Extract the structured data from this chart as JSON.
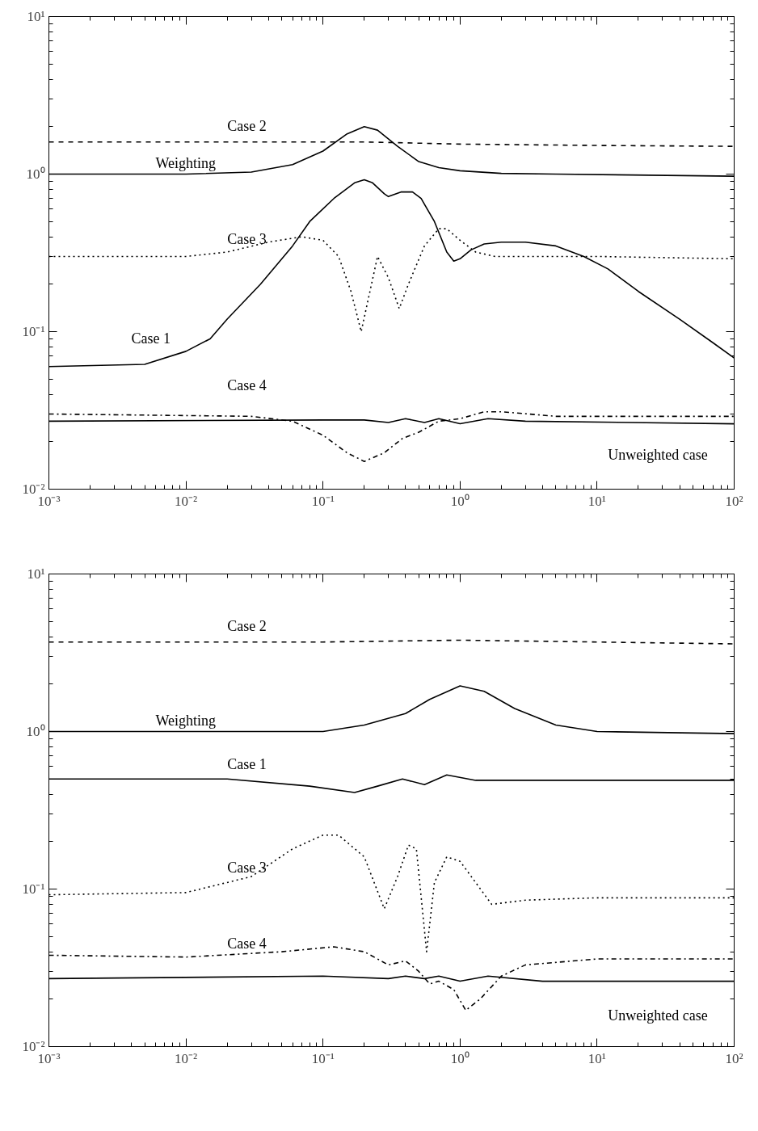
{
  "chart_data": [
    {
      "type": "line",
      "log": "xy",
      "grid": false,
      "legend": false,
      "marker": "none",
      "xlim": [
        0.001,
        100
      ],
      "ylim": [
        0.01,
        10
      ],
      "xticks": [
        {
          "value": 0.001,
          "label": "10⁻³"
        },
        {
          "value": 0.01,
          "label": "10⁻²"
        },
        {
          "value": 0.1,
          "label": "10⁻¹"
        },
        {
          "value": 1,
          "label": "10⁰"
        },
        {
          "value": 10,
          "label": "10¹"
        },
        {
          "value": 100,
          "label": "10²"
        }
      ],
      "yticks": [
        {
          "value": 0.01,
          "label": "10⁻²"
        },
        {
          "value": 0.1,
          "label": "10⁻¹"
        },
        {
          "value": 1,
          "label": "10⁰"
        },
        {
          "value": 10,
          "label": "10¹"
        }
      ],
      "series": [
        {
          "name": "Case 2",
          "color": "#000000",
          "line_style": "dashed",
          "x": [
            0.001,
            0.01,
            0.2,
            1,
            10,
            100
          ],
          "values": [
            1.6,
            1.6,
            1.6,
            1.55,
            1.52,
            1.5
          ]
        },
        {
          "name": "Weighting",
          "color": "#000000",
          "line_style": "solid",
          "x": [
            0.001,
            0.01,
            0.03,
            0.06,
            0.1,
            0.15,
            0.2,
            0.25,
            0.35,
            0.5,
            0.7,
            1,
            2,
            5,
            100
          ],
          "values": [
            1.0,
            1.0,
            1.03,
            1.15,
            1.4,
            1.8,
            2.0,
            1.9,
            1.5,
            1.2,
            1.1,
            1.05,
            1.01,
            1.0,
            0.97
          ]
        },
        {
          "name": "Case 1",
          "color": "#000000",
          "line_style": "solid",
          "x": [
            0.001,
            0.005,
            0.01,
            0.015,
            0.02,
            0.035,
            0.06,
            0.08,
            0.12,
            0.17,
            0.2,
            0.23,
            0.28,
            0.3,
            0.37,
            0.45,
            0.52,
            0.65,
            0.8,
            0.9,
            1.0,
            1.2,
            1.5,
            2,
            3,
            5,
            8,
            12,
            20,
            40,
            70,
            100
          ],
          "values": [
            0.06,
            0.062,
            0.075,
            0.09,
            0.12,
            0.2,
            0.35,
            0.5,
            0.7,
            0.88,
            0.92,
            0.88,
            0.75,
            0.72,
            0.77,
            0.77,
            0.7,
            0.5,
            0.32,
            0.28,
            0.29,
            0.33,
            0.36,
            0.37,
            0.37,
            0.35,
            0.3,
            0.25,
            0.18,
            0.12,
            0.085,
            0.068
          ]
        },
        {
          "name": "Case 3",
          "color": "#000000",
          "line_style": "dotted",
          "x": [
            0.001,
            0.01,
            0.02,
            0.04,
            0.07,
            0.1,
            0.13,
            0.16,
            0.19,
            0.22,
            0.25,
            0.3,
            0.36,
            0.42,
            0.55,
            0.7,
            0.8,
            1.0,
            1.3,
            1.8,
            10,
            100
          ],
          "values": [
            0.3,
            0.3,
            0.32,
            0.37,
            0.4,
            0.38,
            0.3,
            0.18,
            0.1,
            0.18,
            0.3,
            0.22,
            0.14,
            0.2,
            0.35,
            0.45,
            0.45,
            0.38,
            0.32,
            0.3,
            0.3,
            0.29
          ]
        },
        {
          "name": "Case 4",
          "color": "#000000",
          "line_style": "dashdot",
          "x": [
            0.001,
            0.03,
            0.06,
            0.1,
            0.15,
            0.2,
            0.28,
            0.38,
            0.5,
            0.7,
            1.0,
            1.5,
            2,
            5,
            100
          ],
          "values": [
            0.03,
            0.029,
            0.027,
            0.022,
            0.017,
            0.015,
            0.017,
            0.021,
            0.023,
            0.027,
            0.028,
            0.031,
            0.031,
            0.029,
            0.029
          ]
        },
        {
          "name": "Unweighted case",
          "color": "#000000",
          "line_style": "solid",
          "x": [
            0.001,
            0.1,
            0.2,
            0.3,
            0.4,
            0.55,
            0.7,
            1.0,
            1.6,
            3,
            100
          ],
          "values": [
            0.027,
            0.0275,
            0.0275,
            0.0265,
            0.028,
            0.0265,
            0.028,
            0.026,
            0.028,
            0.027,
            0.026
          ]
        }
      ]
    },
    {
      "type": "line",
      "log": "xy",
      "grid": false,
      "legend": false,
      "marker": "none",
      "xlim": [
        0.001,
        100
      ],
      "ylim": [
        0.01,
        10
      ],
      "xticks": [
        {
          "value": 0.001,
          "label": "10⁻³"
        },
        {
          "value": 0.01,
          "label": "10⁻²"
        },
        {
          "value": 0.1,
          "label": "10⁻¹"
        },
        {
          "value": 1,
          "label": "10⁰"
        },
        {
          "value": 10,
          "label": "10¹"
        },
        {
          "value": 100,
          "label": "10²"
        }
      ],
      "yticks": [
        {
          "value": 0.01,
          "label": "10⁻²"
        },
        {
          "value": 0.1,
          "label": "10⁻¹"
        },
        {
          "value": 1,
          "label": "10⁰"
        },
        {
          "value": 10,
          "label": "10¹"
        }
      ],
      "series": [
        {
          "name": "Case 2",
          "color": "#000000",
          "line_style": "dashed",
          "x": [
            0.001,
            0.1,
            1,
            10,
            100
          ],
          "values": [
            3.7,
            3.7,
            3.8,
            3.7,
            3.6
          ]
        },
        {
          "name": "Weighting",
          "color": "#000000",
          "line_style": "solid",
          "x": [
            0.001,
            0.1,
            0.2,
            0.4,
            0.6,
            1.0,
            1.5,
            2.5,
            5,
            10,
            100
          ],
          "values": [
            1.0,
            1.0,
            1.1,
            1.3,
            1.6,
            1.95,
            1.8,
            1.4,
            1.1,
            1.0,
            0.97
          ]
        },
        {
          "name": "Case 1",
          "color": "#000000",
          "line_style": "solid",
          "x": [
            0.001,
            0.02,
            0.08,
            0.17,
            0.25,
            0.38,
            0.55,
            0.8,
            1.3,
            100
          ],
          "values": [
            0.5,
            0.5,
            0.45,
            0.41,
            0.45,
            0.5,
            0.46,
            0.53,
            0.49,
            0.49
          ]
        },
        {
          "name": "Case 3",
          "color": "#000000",
          "line_style": "dotted",
          "x": [
            0.001,
            0.01,
            0.03,
            0.06,
            0.1,
            0.13,
            0.2,
            0.28,
            0.35,
            0.42,
            0.48,
            0.57,
            0.65,
            0.8,
            1.0,
            1.3,
            1.7,
            3,
            10,
            100
          ],
          "values": [
            0.092,
            0.095,
            0.12,
            0.18,
            0.22,
            0.22,
            0.16,
            0.075,
            0.12,
            0.19,
            0.18,
            0.04,
            0.11,
            0.16,
            0.15,
            0.11,
            0.08,
            0.085,
            0.088,
            0.088
          ]
        },
        {
          "name": "Case 4",
          "color": "#000000",
          "line_style": "dashdot",
          "x": [
            0.001,
            0.01,
            0.05,
            0.12,
            0.2,
            0.3,
            0.4,
            0.5,
            0.6,
            0.7,
            0.9,
            1.1,
            1.4,
            2,
            3,
            10,
            100
          ],
          "values": [
            0.038,
            0.037,
            0.04,
            0.043,
            0.04,
            0.033,
            0.035,
            0.03,
            0.025,
            0.026,
            0.023,
            0.017,
            0.02,
            0.028,
            0.033,
            0.036,
            0.036
          ]
        },
        {
          "name": "Unweighted case",
          "color": "#000000",
          "line_style": "solid",
          "x": [
            0.001,
            0.1,
            0.3,
            0.4,
            0.55,
            0.7,
            1.0,
            1.6,
            4,
            100
          ],
          "values": [
            0.027,
            0.028,
            0.027,
            0.028,
            0.027,
            0.028,
            0.026,
            0.028,
            0.026,
            0.026
          ]
        }
      ]
    }
  ]
}
